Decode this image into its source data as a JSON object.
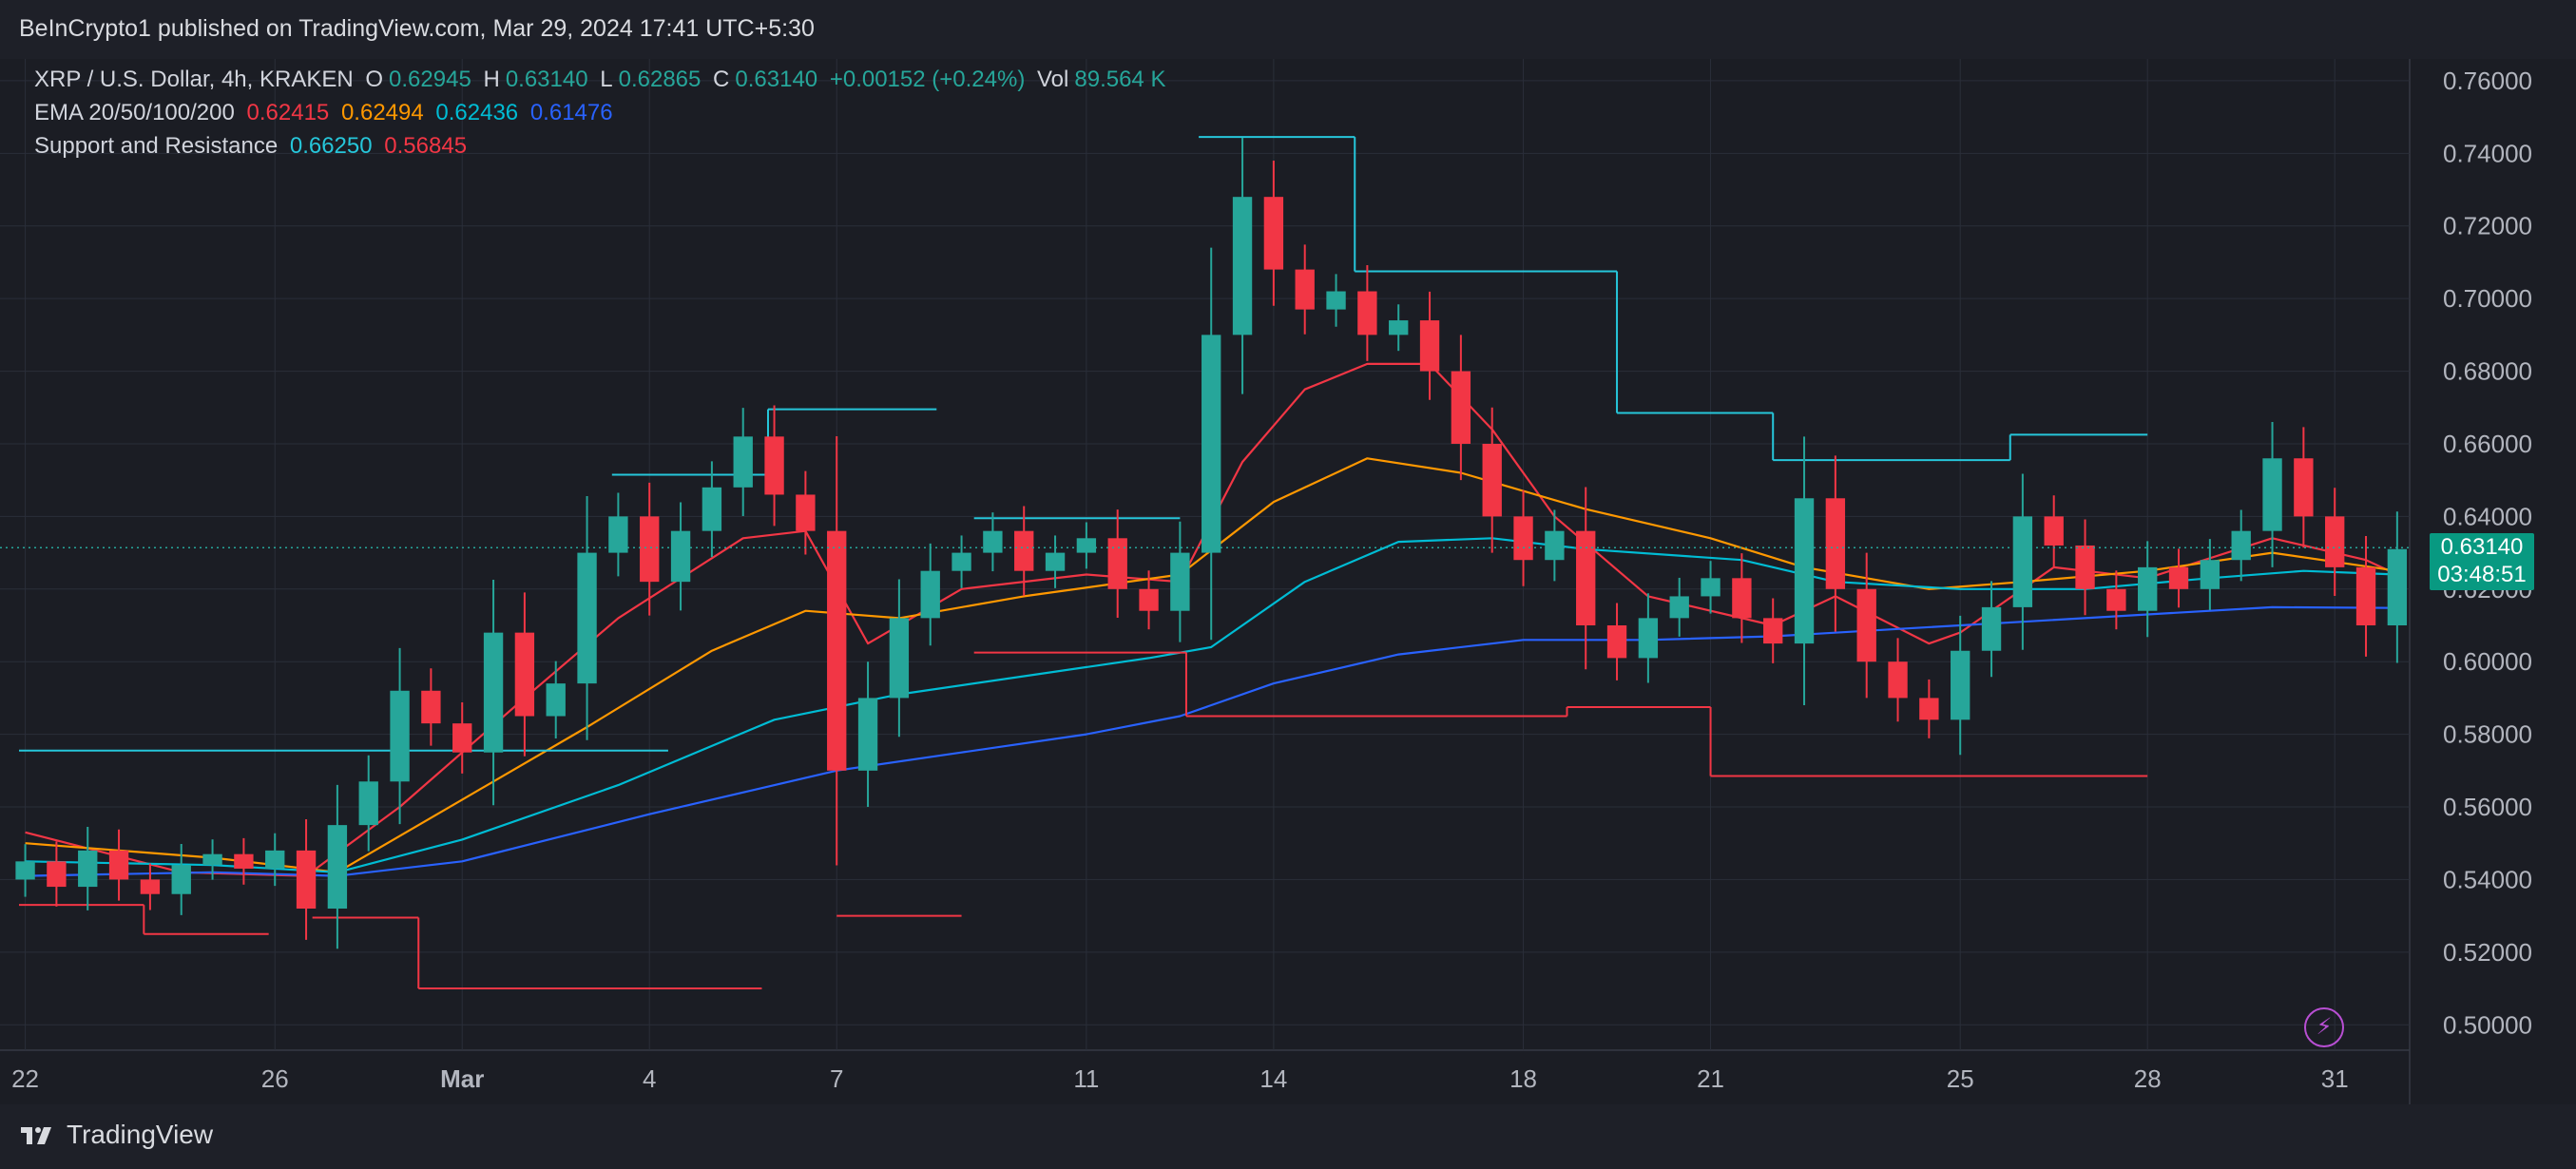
{
  "header": {
    "published": "BeInCrypto1 published on TradingView.com, Mar 29, 2024 17:41 UTC+5:30"
  },
  "footer": {
    "brand": "TradingView"
  },
  "legend": {
    "symbol": "XRP / U.S. Dollar, 4h, KRAKEN",
    "o_label": "O",
    "o_value": "0.62945",
    "h_label": "H",
    "h_value": "0.63140",
    "l_label": "L",
    "l_value": "0.62865",
    "c_label": "C",
    "c_value": "0.63140",
    "change": "+0.00152 (+0.24%)",
    "vol_label": "Vol",
    "vol_value": "89.564 K",
    "ema_label": "EMA 20/50/100/200",
    "ema20": "0.62415",
    "ema50": "0.62494",
    "ema100": "0.62436",
    "ema200": "0.61476",
    "sr_label": "Support and Resistance",
    "resistance": "0.66250",
    "support": "0.56845"
  },
  "price_tag": {
    "price": "0.63140",
    "countdown": "03:48:51"
  },
  "colors": {
    "bull": "#26a69a",
    "bear": "#f23645",
    "ema20": "#f23645",
    "ema50": "#ff9800",
    "ema100": "#00bcd4",
    "ema200": "#2962ff",
    "resistance": "#26c6da",
    "support": "#f23645",
    "background": "#1b1d24",
    "grid": "#2a2e39"
  },
  "chart_data": {
    "type": "candlestick",
    "y_axis": {
      "ticks": [
        "0.76000",
        "0.74000",
        "0.72000",
        "0.70000",
        "0.68000",
        "0.66000",
        "0.64000",
        "0.62000",
        "0.60000",
        "0.58000",
        "0.56000",
        "0.54000",
        "0.52000",
        "0.50000"
      ],
      "range": [
        0.493,
        0.766
      ],
      "position": "right"
    },
    "x_axis": {
      "ticks": [
        {
          "label": "22",
          "day": 22
        },
        {
          "label": "26",
          "day": 26
        },
        {
          "label": "Mar",
          "day": 29
        },
        {
          "label": "4",
          "day": 32
        },
        {
          "label": "7",
          "day": 35
        },
        {
          "label": "11",
          "day": 39
        },
        {
          "label": "14",
          "day": 42
        },
        {
          "label": "18",
          "day": 46
        },
        {
          "label": "21",
          "day": 49
        },
        {
          "label": "25",
          "day": 53
        },
        {
          "label": "28",
          "day": 56
        },
        {
          "label": "31",
          "day": 59
        }
      ],
      "range": [
        21.9,
        60.2
      ],
      "unit": "days from Feb 1, 2024"
    },
    "last_price": 0.6314,
    "candles": [
      [
        22.0,
        0.54,
        0.545
      ],
      [
        22.5,
        0.545,
        0.538
      ],
      [
        23.0,
        0.538,
        0.548
      ],
      [
        23.5,
        0.548,
        0.54
      ],
      [
        24.0,
        0.54,
        0.536
      ],
      [
        24.5,
        0.536,
        0.544
      ],
      [
        25.0,
        0.544,
        0.547
      ],
      [
        25.5,
        0.547,
        0.543
      ],
      [
        26.0,
        0.543,
        0.548
      ],
      [
        26.5,
        0.548,
        0.532
      ],
      [
        27.0,
        0.532,
        0.555
      ],
      [
        27.5,
        0.555,
        0.567
      ],
      [
        28.0,
        0.567,
        0.592
      ],
      [
        28.5,
        0.592,
        0.583
      ],
      [
        29.0,
        0.583,
        0.575
      ],
      [
        29.5,
        0.575,
        0.608
      ],
      [
        30.0,
        0.608,
        0.585
      ],
      [
        30.5,
        0.585,
        0.594
      ],
      [
        31.0,
        0.594,
        0.63
      ],
      [
        31.5,
        0.63,
        0.64
      ],
      [
        32.0,
        0.64,
        0.622
      ],
      [
        32.5,
        0.622,
        0.636
      ],
      [
        33.0,
        0.636,
        0.648
      ],
      [
        33.5,
        0.648,
        0.662
      ],
      [
        34.0,
        0.662,
        0.646
      ],
      [
        34.5,
        0.646,
        0.636
      ],
      [
        35.0,
        0.636,
        0.57
      ],
      [
        35.5,
        0.57,
        0.59
      ],
      [
        36.0,
        0.59,
        0.612
      ],
      [
        36.5,
        0.612,
        0.625
      ],
      [
        37.0,
        0.625,
        0.63
      ],
      [
        37.5,
        0.63,
        0.636
      ],
      [
        38.0,
        0.636,
        0.625
      ],
      [
        38.5,
        0.625,
        0.63
      ],
      [
        39.0,
        0.63,
        0.634
      ],
      [
        39.5,
        0.634,
        0.62
      ],
      [
        40.0,
        0.62,
        0.614
      ],
      [
        40.5,
        0.614,
        0.63
      ],
      [
        41.0,
        0.63,
        0.69
      ],
      [
        41.5,
        0.69,
        0.728
      ],
      [
        42.0,
        0.728,
        0.708
      ],
      [
        42.5,
        0.708,
        0.697
      ],
      [
        43.0,
        0.697,
        0.702
      ],
      [
        43.5,
        0.702,
        0.69
      ],
      [
        44.0,
        0.69,
        0.694
      ],
      [
        44.5,
        0.694,
        0.68
      ],
      [
        45.0,
        0.68,
        0.66
      ],
      [
        45.5,
        0.66,
        0.64
      ],
      [
        46.0,
        0.64,
        0.628
      ],
      [
        46.5,
        0.628,
        0.636
      ],
      [
        47.0,
        0.636,
        0.61
      ],
      [
        47.5,
        0.61,
        0.601
      ],
      [
        48.0,
        0.601,
        0.612
      ],
      [
        48.5,
        0.612,
        0.618
      ],
      [
        49.0,
        0.618,
        0.623
      ],
      [
        49.5,
        0.623,
        0.612
      ],
      [
        50.0,
        0.612,
        0.605
      ],
      [
        50.5,
        0.605,
        0.645
      ],
      [
        51.0,
        0.645,
        0.62
      ],
      [
        51.5,
        0.62,
        0.6
      ],
      [
        52.0,
        0.6,
        0.59
      ],
      [
        52.5,
        0.59,
        0.584
      ],
      [
        53.0,
        0.584,
        0.603
      ],
      [
        53.5,
        0.603,
        0.615
      ],
      [
        54.0,
        0.615,
        0.64
      ],
      [
        54.5,
        0.64,
        0.632
      ],
      [
        55.0,
        0.632,
        0.62
      ],
      [
        55.5,
        0.62,
        0.614
      ],
      [
        56.0,
        0.614,
        0.626
      ],
      [
        56.5,
        0.626,
        0.62
      ],
      [
        57.0,
        0.62,
        0.628
      ],
      [
        57.5,
        0.628,
        0.636
      ],
      [
        58.0,
        0.636,
        0.656
      ],
      [
        58.5,
        0.656,
        0.64
      ],
      [
        59.0,
        0.64,
        0.626
      ],
      [
        59.5,
        0.626,
        0.61
      ],
      [
        60.0,
        0.61,
        0.631
      ]
    ],
    "ema": [
      {
        "key": "ema20",
        "color": "#f23645",
        "points": [
          [
            22.0,
            0.553
          ],
          [
            24.5,
            0.542
          ],
          [
            26.5,
            0.541
          ],
          [
            28.0,
            0.56
          ],
          [
            30.0,
            0.59
          ],
          [
            31.5,
            0.612
          ],
          [
            33.5,
            0.634
          ],
          [
            34.5,
            0.636
          ],
          [
            35.5,
            0.605
          ],
          [
            37.0,
            0.62
          ],
          [
            39.0,
            0.624
          ],
          [
            40.5,
            0.622
          ],
          [
            41.5,
            0.655
          ],
          [
            42.5,
            0.675
          ],
          [
            43.5,
            0.682
          ],
          [
            44.5,
            0.682
          ],
          [
            45.5,
            0.664
          ],
          [
            46.5,
            0.64
          ],
          [
            48.0,
            0.618
          ],
          [
            50.0,
            0.61
          ],
          [
            51.0,
            0.618
          ],
          [
            52.5,
            0.605
          ],
          [
            53.0,
            0.608
          ],
          [
            54.5,
            0.626
          ],
          [
            56.0,
            0.623
          ],
          [
            58.0,
            0.634
          ],
          [
            59.5,
            0.628
          ],
          [
            60.0,
            0.624
          ]
        ]
      },
      {
        "key": "ema50",
        "color": "#ff9800",
        "points": [
          [
            22.0,
            0.55
          ],
          [
            25.0,
            0.546
          ],
          [
            27.0,
            0.542
          ],
          [
            29.0,
            0.562
          ],
          [
            31.0,
            0.582
          ],
          [
            33.0,
            0.603
          ],
          [
            34.5,
            0.614
          ],
          [
            36.0,
            0.612
          ],
          [
            38.0,
            0.618
          ],
          [
            40.5,
            0.624
          ],
          [
            42.0,
            0.644
          ],
          [
            43.5,
            0.656
          ],
          [
            45.0,
            0.652
          ],
          [
            47.0,
            0.642
          ],
          [
            49.0,
            0.634
          ],
          [
            50.5,
            0.626
          ],
          [
            52.5,
            0.62
          ],
          [
            54.0,
            0.622
          ],
          [
            56.0,
            0.625
          ],
          [
            58.0,
            0.63
          ],
          [
            60.0,
            0.625
          ]
        ]
      },
      {
        "key": "ema100",
        "color": "#00bcd4",
        "points": [
          [
            22.0,
            0.545
          ],
          [
            25.0,
            0.544
          ],
          [
            27.0,
            0.542
          ],
          [
            29.0,
            0.551
          ],
          [
            31.5,
            0.566
          ],
          [
            34.0,
            0.584
          ],
          [
            36.0,
            0.591
          ],
          [
            38.0,
            0.596
          ],
          [
            40.0,
            0.601
          ],
          [
            41.0,
            0.604
          ],
          [
            42.5,
            0.622
          ],
          [
            44.0,
            0.633
          ],
          [
            45.5,
            0.634
          ],
          [
            47.0,
            0.631
          ],
          [
            49.5,
            0.628
          ],
          [
            51.0,
            0.622
          ],
          [
            53.0,
            0.62
          ],
          [
            55.0,
            0.62
          ],
          [
            57.0,
            0.623
          ],
          [
            58.5,
            0.625
          ],
          [
            60.0,
            0.624
          ]
        ]
      },
      {
        "key": "ema200",
        "color": "#2962ff",
        "points": [
          [
            22.0,
            0.541
          ],
          [
            25.0,
            0.542
          ],
          [
            27.0,
            0.541
          ],
          [
            29.0,
            0.545
          ],
          [
            32.0,
            0.558
          ],
          [
            35.0,
            0.57
          ],
          [
            37.0,
            0.575
          ],
          [
            39.0,
            0.58
          ],
          [
            40.5,
            0.585
          ],
          [
            42.0,
            0.594
          ],
          [
            44.0,
            0.602
          ],
          [
            46.0,
            0.606
          ],
          [
            48.0,
            0.606
          ],
          [
            50.0,
            0.607
          ],
          [
            52.0,
            0.609
          ],
          [
            54.0,
            0.611
          ],
          [
            56.0,
            0.613
          ],
          [
            58.0,
            0.615
          ],
          [
            60.0,
            0.6148
          ]
        ]
      }
    ],
    "support_resistance": [
      {
        "kind": "res",
        "start": 21.9,
        "end": 32.3,
        "price": 0.5755
      },
      {
        "kind": "res",
        "start": 31.4,
        "end": 33.9,
        "price": 0.6515
      },
      {
        "kind": "res",
        "start": 33.9,
        "end": 36.6,
        "price": 0.6695
      },
      {
        "kind": "res",
        "start": 37.2,
        "end": 40.5,
        "price": 0.6395
      },
      {
        "kind": "res",
        "start": 40.8,
        "end": 43.3,
        "price": 0.7445
      },
      {
        "kind": "res",
        "start": 43.3,
        "end": 47.5,
        "price": 0.7075
      },
      {
        "kind": "res",
        "start": 47.5,
        "end": 50.0,
        "price": 0.6685
      },
      {
        "kind": "res",
        "start": 50.0,
        "end": 53.8,
        "price": 0.6555
      },
      {
        "kind": "res",
        "start": 53.8,
        "end": 56.0,
        "price": 0.6625
      },
      {
        "kind": "sup",
        "start": 21.9,
        "end": 23.9,
        "price": 0.533
      },
      {
        "kind": "sup",
        "start": 23.9,
        "end": 25.9,
        "price": 0.525
      },
      {
        "kind": "sup",
        "start": 26.6,
        "end": 28.3,
        "price": 0.5295
      },
      {
        "kind": "sup",
        "start": 28.3,
        "end": 33.8,
        "price": 0.51
      },
      {
        "kind": "sup",
        "start": 35.0,
        "end": 37.0,
        "price": 0.53
      },
      {
        "kind": "sup",
        "start": 37.2,
        "end": 40.6,
        "price": 0.6025
      },
      {
        "kind": "sup",
        "start": 40.6,
        "end": 46.7,
        "price": 0.585
      },
      {
        "kind": "sup",
        "start": 46.7,
        "end": 49.0,
        "price": 0.5875
      },
      {
        "kind": "sup",
        "start": 49.0,
        "end": 56.0,
        "price": 0.5685
      }
    ]
  }
}
